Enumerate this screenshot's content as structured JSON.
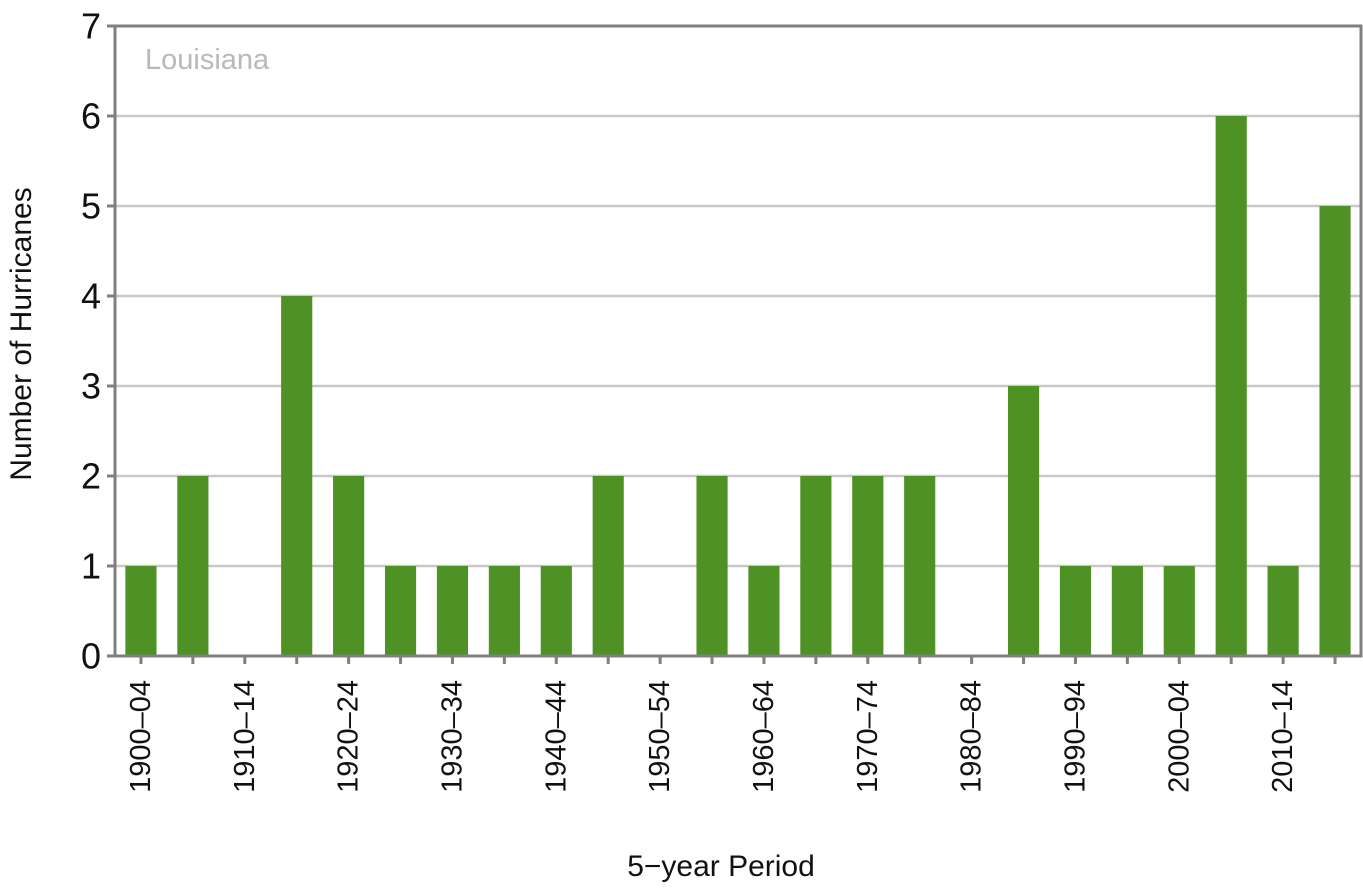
{
  "chart_data": {
    "type": "bar",
    "panel_label": "Louisiana",
    "xlabel": "5−year Period",
    "ylabel": "Number of Hurricanes",
    "ylim": [
      0,
      7
    ],
    "yticks": [
      0,
      1,
      2,
      3,
      4,
      5,
      6,
      7
    ],
    "grid": "horizontal",
    "bar_color": "#4e9124",
    "categories": [
      "1900–04",
      "1905–09",
      "1910–14",
      "1915–19",
      "1920–24",
      "1925–29",
      "1930–34",
      "1935–39",
      "1940–44",
      "1945–49",
      "1950–54",
      "1955–59",
      "1960–64",
      "1965–69",
      "1970–74",
      "1975–79",
      "1980–84",
      "1985–89",
      "1990–94",
      "1995–99",
      "2000–04",
      "2005–09",
      "2010–14",
      "2015–19"
    ],
    "labeled_categories": [
      "1900–04",
      "1910–14",
      "1920–24",
      "1930–34",
      "1940–44",
      "1950–54",
      "1960–64",
      "1970–74",
      "1980–84",
      "1990–94",
      "2000–04",
      "2010–14"
    ],
    "values": [
      1,
      2,
      0,
      4,
      2,
      1,
      1,
      1,
      1,
      2,
      0,
      2,
      1,
      2,
      2,
      2,
      0,
      3,
      1,
      1,
      1,
      6,
      1,
      5
    ]
  }
}
